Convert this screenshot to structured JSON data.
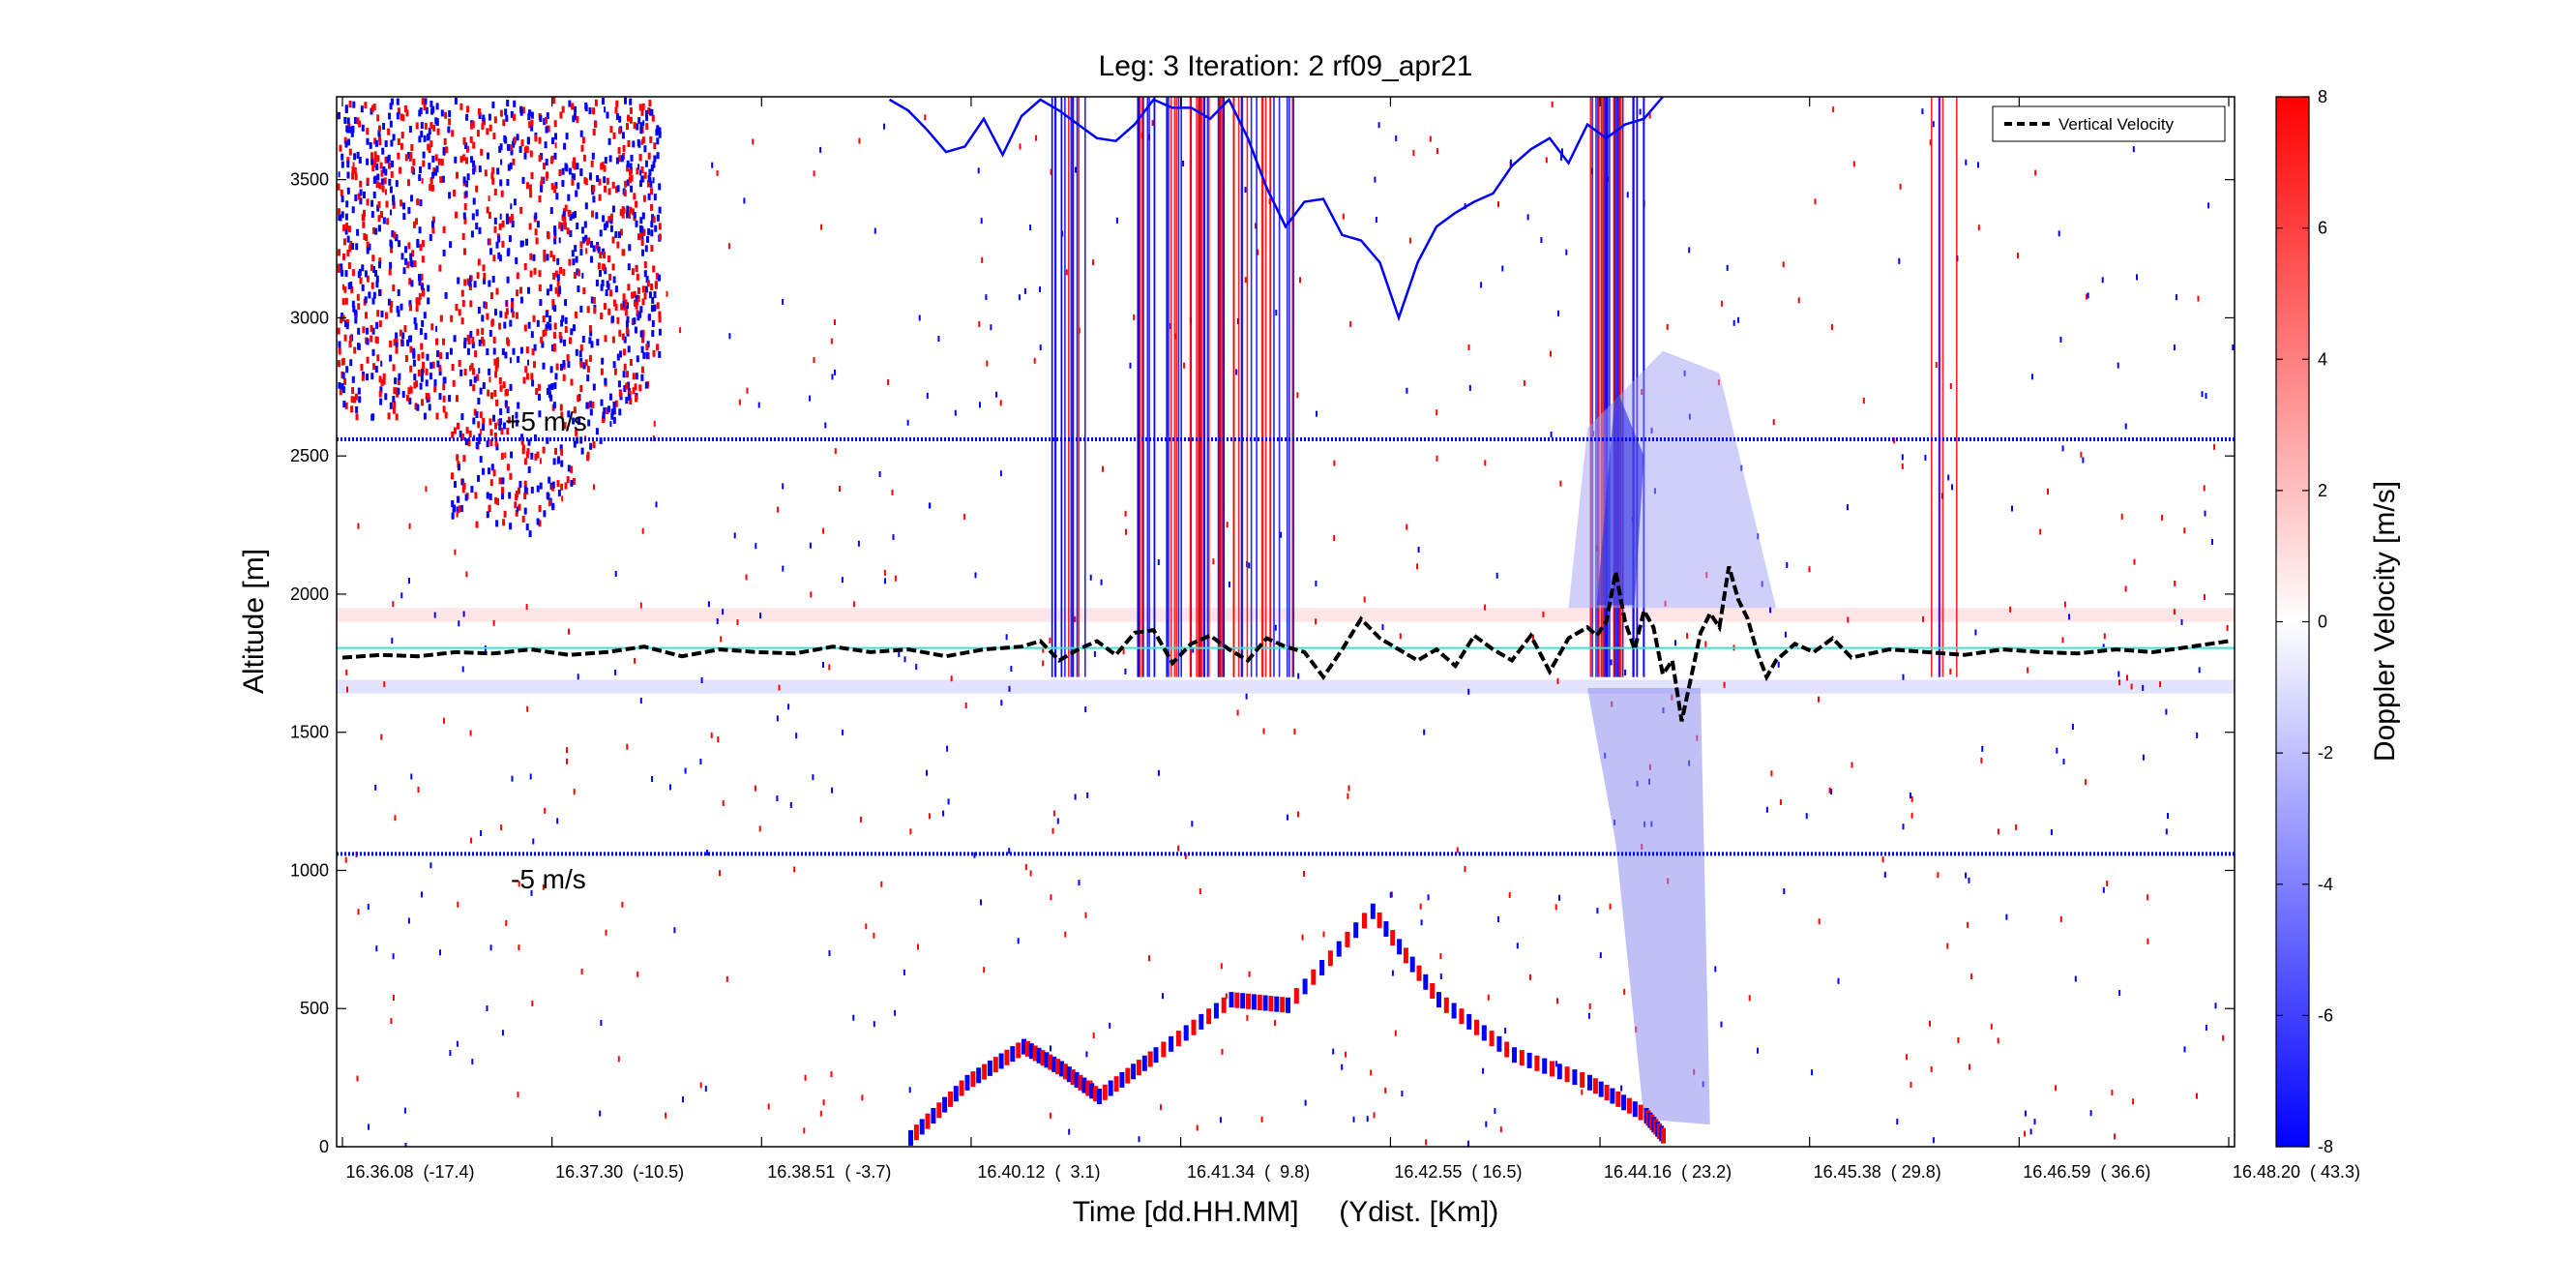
{
  "chart_data": {
    "type": "heatmap",
    "title": "Leg: 3  Iteration: 2  rf09_apr21",
    "xlabel": "Time [dd.HH.MM]     (Ydist. [Km])",
    "ylabel": "Altitude [m]",
    "colorbar_label": "Doppler Velocity [m/s]",
    "ylim": [
      0,
      3800
    ],
    "colorbar_range": [
      -8,
      8
    ],
    "colorbar_ticks": [
      "8",
      "6",
      "4",
      "2",
      "0",
      "-2",
      "-4",
      "-6",
      "-8"
    ],
    "colorbar_tick_values": [
      8,
      6,
      4,
      2,
      0,
      -2,
      -4,
      -6,
      -8
    ],
    "yticks": [
      "0",
      "500",
      "1000",
      "1500",
      "2000",
      "2500",
      "3000",
      "3500"
    ],
    "ytick_values": [
      0,
      500,
      1000,
      1500,
      2000,
      2500,
      3000,
      3500
    ],
    "xtick_labels": [
      "16.36.08  (-17.4)",
      "16.37.30  (-10.5)",
      "16.38.51  ( -3.7)",
      "16.40.12  (  3.1)",
      "16.41.34  (  9.8)",
      "16.42.55  ( 16.5)",
      "16.44.16  ( 23.2)",
      "16.45.38  ( 29.8)",
      "16.46.59  ( 36.6)",
      "16.48.20  ( 43.3)"
    ],
    "xtick_fractions": [
      0,
      0.1111,
      0.2222,
      0.3333,
      0.4444,
      0.5556,
      0.6667,
      0.7778,
      0.8889,
      1.0
    ],
    "legend": {
      "label": "Vertical Velocity",
      "placement": "top-right"
    },
    "annotations": [
      {
        "text": "+5 m/s",
        "y": 2560
      },
      {
        "text": "-5 m/s",
        "y": 1060
      }
    ],
    "reference_line_altitude": 1805,
    "colors": {
      "positive": "#ff0000",
      "negative": "#0000ff",
      "reference_line": "#40e0d0",
      "vertical_velocity": "#000000"
    },
    "series": [
      {
        "name": "Vertical Velocity",
        "x_fraction": [
          0,
          0.02,
          0.04,
          0.06,
          0.08,
          0.1,
          0.12,
          0.14,
          0.16,
          0.18,
          0.2,
          0.22,
          0.24,
          0.26,
          0.28,
          0.3,
          0.32,
          0.34,
          0.36,
          0.37,
          0.38,
          0.39,
          0.4,
          0.41,
          0.42,
          0.43,
          0.44,
          0.45,
          0.46,
          0.47,
          0.48,
          0.49,
          0.5,
          0.51,
          0.52,
          0.53,
          0.54,
          0.55,
          0.56,
          0.57,
          0.58,
          0.59,
          0.6,
          0.61,
          0.62,
          0.63,
          0.64,
          0.65,
          0.66,
          0.665,
          0.67,
          0.675,
          0.68,
          0.685,
          0.69,
          0.695,
          0.7,
          0.705,
          0.71,
          0.715,
          0.72,
          0.725,
          0.73,
          0.735,
          0.74,
          0.745,
          0.75,
          0.755,
          0.76,
          0.77,
          0.78,
          0.79,
          0.8,
          0.82,
          0.84,
          0.86,
          0.88,
          0.9,
          0.92,
          0.94,
          0.96,
          0.98,
          1.0
        ],
        "values": [
          1770,
          1780,
          1775,
          1790,
          1785,
          1800,
          1780,
          1790,
          1810,
          1775,
          1800,
          1790,
          1785,
          1810,
          1790,
          1800,
          1775,
          1800,
          1810,
          1830,
          1760,
          1800,
          1830,
          1780,
          1860,
          1870,
          1750,
          1820,
          1850,
          1800,
          1760,
          1840,
          1810,
          1790,
          1700,
          1800,
          1910,
          1840,
          1800,
          1760,
          1800,
          1740,
          1850,
          1800,
          1760,
          1850,
          1720,
          1840,
          1880,
          1850,
          1900,
          2080,
          1900,
          1800,
          1940,
          1880,
          1710,
          1760,
          1540,
          1700,
          1860,
          1930,
          1880,
          2100,
          1980,
          1910,
          1790,
          1700,
          1760,
          1820,
          1790,
          1840,
          1770,
          1800,
          1790,
          1780,
          1800,
          1790,
          1785,
          1800,
          1790,
          1810,
          1830
        ]
      },
      {
        "name": "",
        "x_fraction": [
          0.29,
          0.3,
          0.31,
          0.32,
          0.33,
          0.34,
          0.35,
          0.36,
          0.37,
          0.38,
          0.39,
          0.4,
          0.41,
          0.42,
          0.43,
          0.44,
          0.45,
          0.46,
          0.47,
          0.48,
          0.49,
          0.5,
          0.51,
          0.52,
          0.53,
          0.54,
          0.55,
          0.56,
          0.57,
          0.58,
          0.59,
          0.6,
          0.61,
          0.62,
          0.63,
          0.64,
          0.65,
          0.66,
          0.67,
          0.68,
          0.69,
          0.7
        ],
        "values": [
          3790,
          3750,
          3680,
          3600,
          3620,
          3720,
          3590,
          3730,
          3790,
          3750,
          3700,
          3650,
          3640,
          3700,
          3790,
          3760,
          3760,
          3720,
          3790,
          3650,
          3470,
          3330,
          3420,
          3430,
          3300,
          3280,
          3200,
          3000,
          3200,
          3330,
          3380,
          3420,
          3450,
          3550,
          3610,
          3650,
          3560,
          3700,
          3650,
          3700,
          3720,
          3800
        ]
      }
    ]
  }
}
